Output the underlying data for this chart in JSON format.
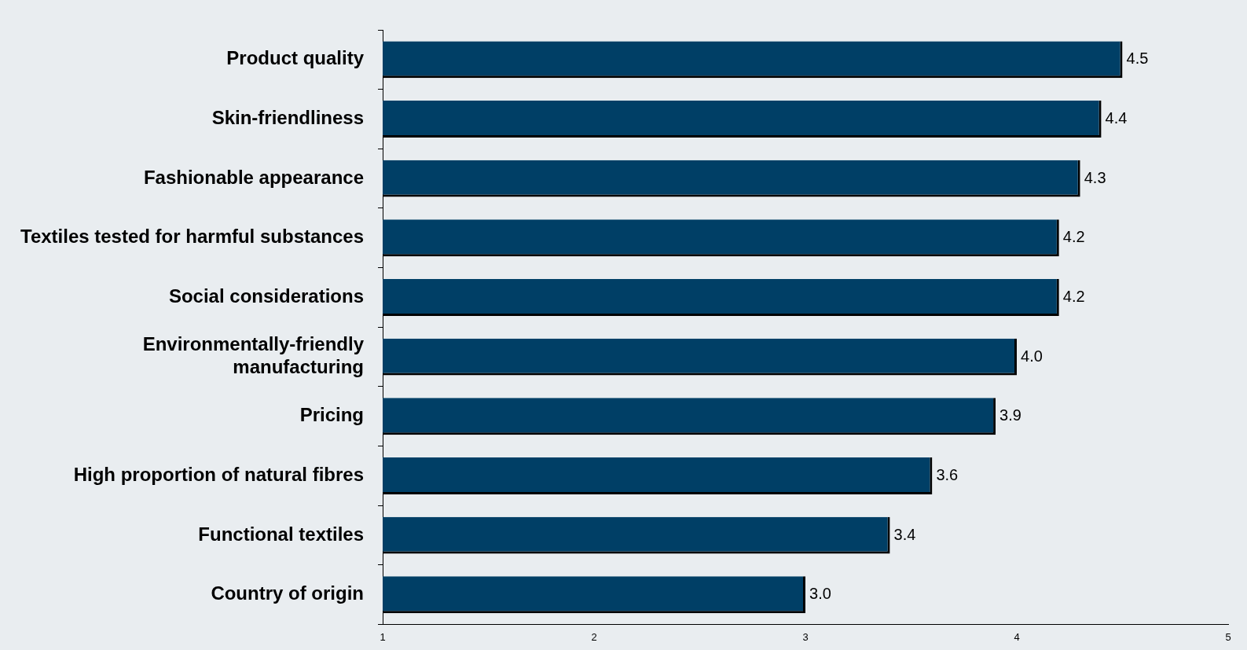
{
  "chart_data": {
    "type": "bar",
    "orientation": "horizontal",
    "categories": [
      "Product quality",
      "Skin-friendliness",
      "Fashionable appearance",
      "Textiles tested for harmful substances",
      "Social considerations",
      "Environmentally-friendly manufacturing",
      "Pricing",
      "High proportion of natural fibres",
      "Functional textiles",
      "Country of origin"
    ],
    "values": [
      4.5,
      4.4,
      4.3,
      4.2,
      4.2,
      4.0,
      3.9,
      3.6,
      3.4,
      3.0
    ],
    "value_labels": [
      "4.5",
      "4.4",
      "4.3",
      "4.2",
      "4.2",
      "4.0",
      "3.9",
      "3.6",
      "3.4",
      "3.0"
    ],
    "color": "#003f66",
    "xlim": [
      1,
      5
    ],
    "xticks": [
      1,
      2,
      3,
      4,
      5
    ],
    "grid": false,
    "legend": false
  }
}
